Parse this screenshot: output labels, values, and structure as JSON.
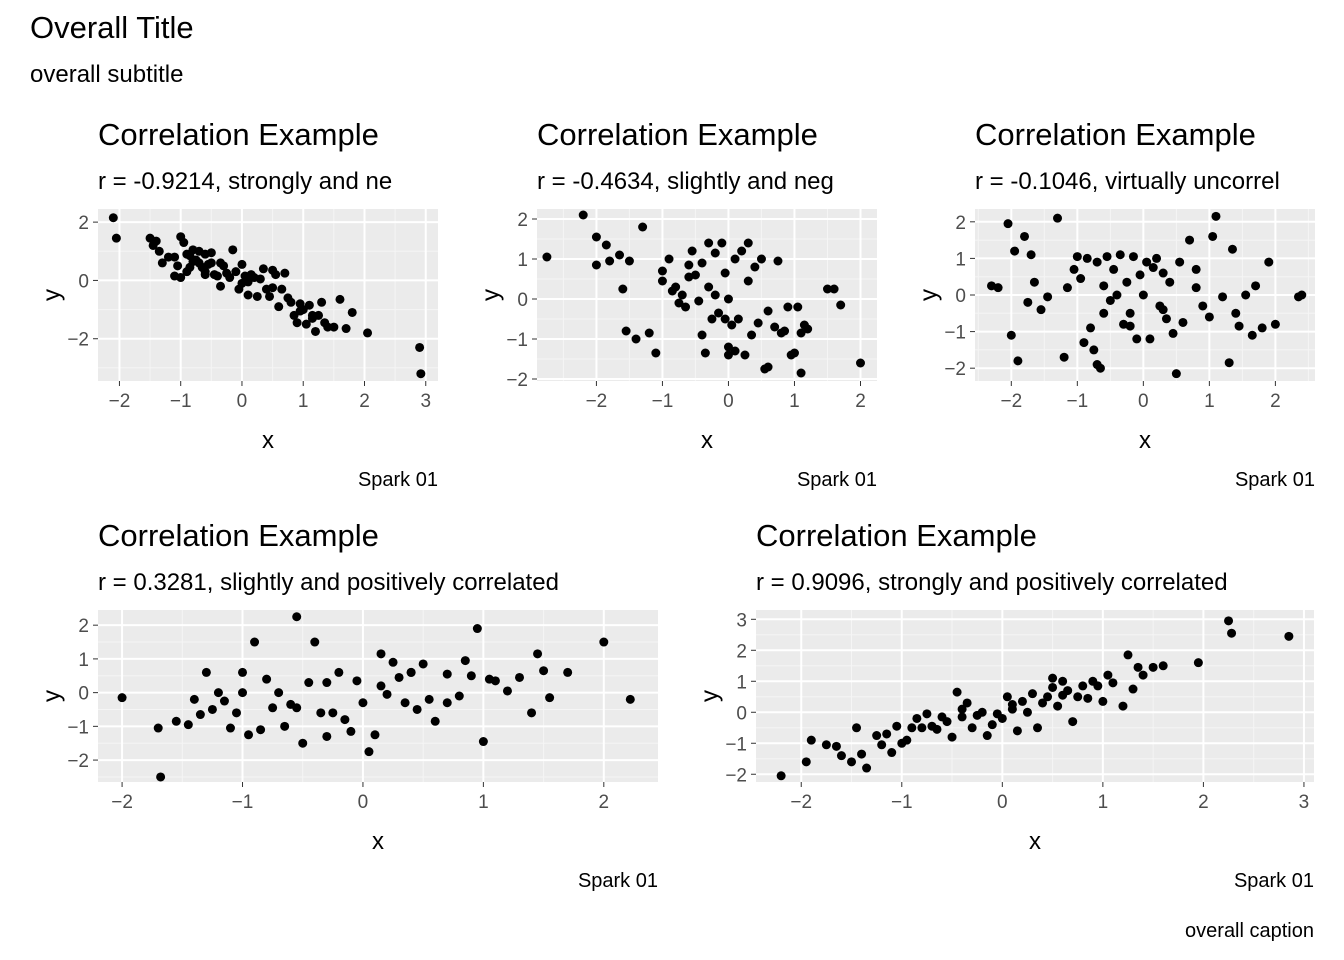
{
  "overall": {
    "title": "Overall Title",
    "subtitle": "overall subtitle",
    "caption": "overall caption"
  },
  "chart_data": [
    {
      "type": "scatter",
      "title": "Correlation Example",
      "subtitle": "r = -0.9214, strongly and ne",
      "caption": "Spark 01",
      "xlabel": "x",
      "ylabel": "y",
      "xlim": [
        -2.35,
        3.2
      ],
      "ylim": [
        -3.45,
        2.45
      ],
      "xticks": [
        -2,
        -1,
        0,
        1,
        2,
        3
      ],
      "yticks": [
        -2,
        0,
        2
      ],
      "grid": true,
      "x": [
        -2.1,
        -2.05,
        -1.5,
        -1.45,
        -1.4,
        -1.35,
        -1.3,
        -1.2,
        -1.1,
        -1.05,
        -1.0,
        -0.95,
        -0.9,
        -0.9,
        -0.85,
        -0.8,
        -0.8,
        -0.75,
        -0.7,
        -0.7,
        -0.65,
        -0.6,
        -0.6,
        -0.55,
        -0.5,
        -0.5,
        -0.45,
        -0.4,
        -0.35,
        -0.3,
        -0.25,
        -0.2,
        -0.15,
        -0.1,
        -0.05,
        0.0,
        0.0,
        0.05,
        0.1,
        0.15,
        0.2,
        0.25,
        0.3,
        0.35,
        0.4,
        0.45,
        0.5,
        0.55,
        0.6,
        0.65,
        0.7,
        0.75,
        0.8,
        0.85,
        0.9,
        0.95,
        1.0,
        1.05,
        1.1,
        1.15,
        1.2,
        1.25,
        1.3,
        1.35,
        1.4,
        1.5,
        1.6,
        1.7,
        1.8,
        2.05,
        2.9,
        2.92,
        -1.0,
        -1.1,
        -0.85,
        -0.6,
        -0.35,
        0.1,
        0.5,
        0.95,
        1.15
      ],
      "y": [
        2.15,
        1.45,
        1.45,
        1.2,
        1.35,
        1.0,
        0.6,
        0.8,
        0.15,
        0.5,
        1.5,
        1.3,
        0.9,
        0.3,
        0.85,
        0.65,
        1.05,
        0.7,
        0.6,
        1.0,
        0.45,
        0.9,
        0.2,
        0.55,
        0.6,
        0.95,
        0.2,
        0.15,
        0.6,
        0.5,
        0.25,
        0.1,
        1.05,
        0.3,
        -0.3,
        0.55,
        -0.1,
        0.15,
        -0.5,
        0.2,
        0.1,
        -0.55,
        0.05,
        0.4,
        -0.3,
        -0.55,
        0.35,
        0.2,
        -0.9,
        -0.3,
        0.25,
        -0.6,
        -0.75,
        -1.2,
        -1.45,
        -0.8,
        -1.0,
        -1.5,
        -0.85,
        -1.2,
        -1.75,
        -1.2,
        -0.75,
        -1.45,
        -1.6,
        -1.6,
        -0.65,
        -1.65,
        -1.1,
        -1.8,
        -2.3,
        -3.2,
        0.1,
        0.8,
        0.45,
        0.3,
        -0.2,
        -0.05,
        -0.25,
        -1.05,
        -1.3
      ]
    },
    {
      "type": "scatter",
      "title": "Correlation Example",
      "subtitle": "r = -0.4634, slightly and neg",
      "caption": "Spark 01",
      "xlabel": "x",
      "ylabel": "y",
      "xlim": [
        -2.9,
        2.25
      ],
      "ylim": [
        -2.05,
        2.25
      ],
      "xticks": [
        -2,
        -1,
        0,
        1,
        2
      ],
      "yticks": [
        -2,
        -1,
        0,
        1,
        2
      ],
      "grid": true,
      "x": [
        -2.75,
        -2.2,
        -2.0,
        -2.0,
        -1.85,
        -1.8,
        -1.65,
        -1.6,
        -1.55,
        -1.5,
        -1.4,
        -1.3,
        -1.2,
        -1.1,
        -1.0,
        -1.0,
        -0.9,
        -0.85,
        -0.8,
        -0.75,
        -0.7,
        -0.65,
        -0.6,
        -0.55,
        -0.5,
        -0.45,
        -0.4,
        -0.35,
        -0.3,
        -0.3,
        -0.25,
        -0.2,
        -0.2,
        -0.15,
        -0.1,
        -0.05,
        -0.05,
        0.0,
        0.0,
        0.05,
        0.1,
        0.1,
        0.15,
        0.2,
        0.25,
        0.3,
        0.35,
        0.4,
        0.45,
        0.5,
        0.55,
        0.6,
        0.7,
        0.75,
        0.8,
        0.85,
        0.9,
        0.95,
        1.0,
        1.05,
        1.1,
        1.15,
        1.2,
        1.5,
        1.6,
        1.7,
        2.0,
        -0.6,
        -0.4,
        0.0,
        0.3,
        0.6,
        1.1
      ],
      "y": [
        1.05,
        2.1,
        1.55,
        0.85,
        1.35,
        0.95,
        1.1,
        0.25,
        -0.8,
        0.95,
        -1.0,
        1.8,
        -0.85,
        -1.35,
        0.7,
        0.45,
        1.0,
        0.2,
        0.3,
        -0.1,
        0.1,
        -0.2,
        0.85,
        1.2,
        0.6,
        -0.05,
        0.9,
        -1.35,
        1.4,
        0.3,
        -0.5,
        0.1,
        1.15,
        -0.35,
        1.4,
        -0.5,
        0.65,
        -1.2,
        0.0,
        -0.65,
        -1.3,
        1.0,
        -0.5,
        1.2,
        -1.4,
        1.4,
        -0.9,
        0.8,
        -0.6,
        1.0,
        -1.75,
        -1.7,
        -0.7,
        0.95,
        -0.85,
        -0.8,
        -0.2,
        -1.4,
        -1.35,
        -0.2,
        -1.85,
        -0.65,
        -0.75,
        0.25,
        0.25,
        -0.15,
        -1.6,
        0.55,
        -0.9,
        -1.4,
        0.45,
        -0.3,
        -0.85
      ]
    },
    {
      "type": "scatter",
      "title": "Correlation Example",
      "subtitle": "r = -0.1046, virtually uncorrel",
      "caption": "Spark 01",
      "xlabel": "x",
      "ylabel": "y",
      "xlim": [
        -2.55,
        2.6
      ],
      "ylim": [
        -2.35,
        2.35
      ],
      "xticks": [
        -2,
        -1,
        0,
        1,
        2
      ],
      "yticks": [
        -2,
        -1,
        0,
        1,
        2
      ],
      "grid": true,
      "x": [
        -2.3,
        -2.2,
        -2.05,
        -2.0,
        -1.95,
        -1.9,
        -1.8,
        -1.75,
        -1.7,
        -1.65,
        -1.55,
        -1.45,
        -1.3,
        -1.2,
        -1.15,
        -1.05,
        -1.0,
        -0.95,
        -0.9,
        -0.85,
        -0.8,
        -0.75,
        -0.7,
        -0.7,
        -0.65,
        -0.6,
        -0.55,
        -0.5,
        -0.45,
        -0.4,
        -0.35,
        -0.3,
        -0.25,
        -0.2,
        -0.15,
        -0.1,
        -0.05,
        0.0,
        0.05,
        0.1,
        0.15,
        0.2,
        0.25,
        0.3,
        0.35,
        0.4,
        0.45,
        0.5,
        0.55,
        0.6,
        0.7,
        0.8,
        0.9,
        1.0,
        1.05,
        1.1,
        1.2,
        1.3,
        1.35,
        1.45,
        1.55,
        1.65,
        1.7,
        1.8,
        1.9,
        2.0,
        2.35,
        2.4,
        -0.6,
        -0.2,
        0.3,
        0.8,
        1.4
      ],
      "y": [
        0.25,
        0.2,
        1.95,
        -1.1,
        1.2,
        -1.8,
        1.6,
        -0.2,
        1.1,
        0.35,
        -0.4,
        -0.05,
        2.1,
        -1.7,
        0.2,
        0.7,
        1.05,
        0.45,
        -1.3,
        1.0,
        -0.9,
        -1.5,
        -1.9,
        0.9,
        -2.0,
        0.25,
        1.05,
        -0.15,
        0.7,
        0.0,
        1.1,
        -0.8,
        0.35,
        -0.5,
        1.05,
        -1.2,
        0.55,
        0.0,
        0.9,
        -1.2,
        0.75,
        1.0,
        -0.3,
        0.6,
        -0.65,
        0.35,
        -1.05,
        -2.15,
        0.9,
        -0.75,
        1.5,
        0.7,
        -0.3,
        -0.6,
        1.6,
        2.15,
        -0.05,
        -1.85,
        1.25,
        -0.85,
        0.0,
        -1.1,
        0.25,
        -0.9,
        0.9,
        -0.8,
        -0.05,
        0.0,
        -0.5,
        -0.85,
        -0.4,
        0.2,
        -0.5
      ]
    },
    {
      "type": "scatter",
      "title": "Correlation Example",
      "subtitle": "r = 0.3281, slightly and positively correlated",
      "caption": "Spark 01",
      "xlabel": "x",
      "ylabel": "y",
      "xlim": [
        -2.2,
        2.45
      ],
      "ylim": [
        -2.65,
        2.45
      ],
      "xticks": [
        -2,
        -1,
        0,
        1,
        2
      ],
      "yticks": [
        -2,
        -1,
        0,
        1,
        2
      ],
      "grid": true,
      "x": [
        -2.0,
        -1.7,
        -1.68,
        -1.55,
        -1.45,
        -1.4,
        -1.35,
        -1.3,
        -1.25,
        -1.2,
        -1.15,
        -1.1,
        -1.05,
        -1.0,
        -0.95,
        -0.9,
        -0.85,
        -0.8,
        -0.75,
        -0.7,
        -0.65,
        -0.6,
        -0.55,
        -0.5,
        -0.45,
        -0.4,
        -0.35,
        -0.3,
        -0.25,
        -0.2,
        -0.15,
        -0.1,
        -0.05,
        0.0,
        0.05,
        0.1,
        0.15,
        0.2,
        0.25,
        0.3,
        0.35,
        0.4,
        0.45,
        0.5,
        0.55,
        0.6,
        0.7,
        0.8,
        0.85,
        0.9,
        0.95,
        1.0,
        1.05,
        1.1,
        1.2,
        1.3,
        1.45,
        1.5,
        1.55,
        1.7,
        2.0,
        2.22,
        -0.55,
        0.4,
        1.4,
        -1.0,
        -0.3,
        0.15,
        0.7
      ],
      "y": [
        -0.15,
        -1.05,
        -2.5,
        -0.85,
        -0.95,
        -0.2,
        -0.65,
        0.6,
        -0.5,
        0.0,
        -0.25,
        -1.05,
        -0.6,
        0.0,
        -1.25,
        1.5,
        -1.1,
        0.4,
        -0.45,
        0.0,
        -1.0,
        -0.35,
        2.25,
        -1.5,
        0.3,
        1.5,
        -0.6,
        -1.3,
        -0.6,
        0.6,
        -0.8,
        -1.15,
        0.35,
        -0.3,
        -1.75,
        -1.25,
        1.15,
        -0.05,
        0.9,
        0.45,
        -0.3,
        0.6,
        -0.5,
        0.85,
        -0.2,
        -0.85,
        0.55,
        -0.1,
        0.95,
        0.5,
        1.9,
        -1.45,
        0.4,
        0.35,
        0.05,
        0.45,
        1.15,
        0.65,
        -0.15,
        0.6,
        1.5,
        -0.2,
        -0.45,
        0.6,
        -0.6,
        0.6,
        0.3,
        0.2,
        -0.3
      ]
    },
    {
      "type": "scatter",
      "title": "Correlation Example",
      "subtitle": "r = 0.9096, strongly and positively correlated",
      "caption": "Spark 01",
      "xlabel": "x",
      "ylabel": "y",
      "xlim": [
        -2.45,
        3.1
      ],
      "ylim": [
        -2.25,
        3.3
      ],
      "xticks": [
        -2,
        -1,
        0,
        1,
        2,
        3
      ],
      "yticks": [
        -2,
        -1,
        0,
        1,
        2,
        3
      ],
      "grid": true,
      "x": [
        -2.2,
        -1.95,
        -1.9,
        -1.75,
        -1.65,
        -1.6,
        -1.5,
        -1.45,
        -1.4,
        -1.35,
        -1.25,
        -1.2,
        -1.15,
        -1.1,
        -1.05,
        -1.0,
        -0.95,
        -0.9,
        -0.85,
        -0.8,
        -0.75,
        -0.7,
        -0.65,
        -0.6,
        -0.55,
        -0.5,
        -0.45,
        -0.4,
        -0.35,
        -0.3,
        -0.25,
        -0.2,
        -0.15,
        -0.1,
        -0.05,
        0.0,
        0.05,
        0.1,
        0.15,
        0.2,
        0.25,
        0.3,
        0.35,
        0.4,
        0.45,
        0.5,
        0.55,
        0.6,
        0.65,
        0.7,
        0.75,
        0.8,
        0.85,
        0.9,
        0.95,
        1.0,
        1.05,
        1.1,
        1.2,
        1.25,
        1.3,
        1.35,
        1.4,
        1.5,
        1.6,
        1.95,
        2.25,
        2.28,
        2.85,
        0.5,
        0.6,
        -0.4,
        0.1
      ],
      "y": [
        -2.05,
        -1.6,
        -0.9,
        -1.05,
        -1.1,
        -1.4,
        -1.6,
        -0.5,
        -1.35,
        -1.8,
        -0.75,
        -1.05,
        -0.7,
        -1.3,
        -0.45,
        -1.0,
        -0.9,
        -0.5,
        -0.2,
        -0.5,
        -0.05,
        -0.45,
        -0.55,
        -0.15,
        -0.3,
        -0.8,
        0.65,
        -0.15,
        0.3,
        -0.5,
        -0.1,
        0.0,
        -0.75,
        -0.4,
        -0.05,
        -0.2,
        0.5,
        0.1,
        -0.6,
        0.35,
        0.0,
        0.6,
        -0.5,
        0.3,
        0.5,
        1.1,
        0.2,
        1.0,
        0.7,
        -0.3,
        0.5,
        0.85,
        0.45,
        1.0,
        0.85,
        0.35,
        1.2,
        0.95,
        0.2,
        1.85,
        0.75,
        1.45,
        1.2,
        1.45,
        1.5,
        1.6,
        2.95,
        2.55,
        2.45,
        0.8,
        0.55,
        0.1,
        0.25
      ]
    }
  ]
}
